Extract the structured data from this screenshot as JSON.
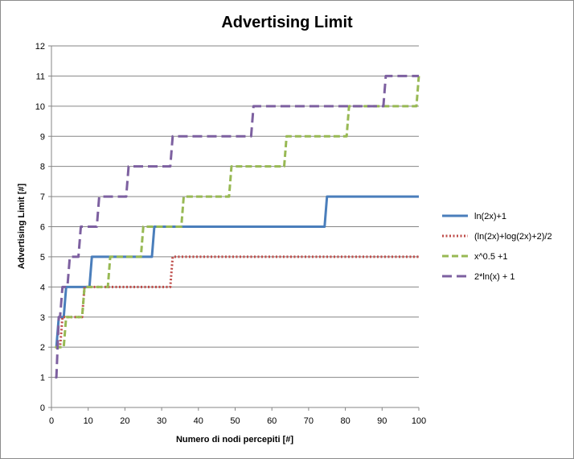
{
  "chart_data": {
    "type": "line",
    "title": "Advertising Limit",
    "xlabel": "Numero di nodi percepiti [#]",
    "ylabel": "Advertising Limit [#]",
    "xlim": [
      0,
      100
    ],
    "ylim": [
      0,
      12
    ],
    "xticks": [
      "0",
      "10",
      "20",
      "30",
      "40",
      "50",
      "60",
      "70",
      "80",
      "90",
      "100"
    ],
    "yticks": [
      "0",
      "1",
      "2",
      "3",
      "4",
      "5",
      "6",
      "7",
      "8",
      "9",
      "10",
      "11",
      "12"
    ],
    "grid": "horizontal",
    "legend_position": "right",
    "series": [
      {
        "name": "ln(2x)+1",
        "color": "#4a7ebb",
        "dash": "solid",
        "x": [
          1,
          2,
          4,
          11,
          28,
          75,
          100
        ],
        "y": [
          2,
          3,
          4,
          5,
          6,
          7,
          7
        ]
      },
      {
        "name": "(ln(2x)+log(2x)+2)/2",
        "color": "#be4b48",
        "dash": "dotted",
        "x": [
          1,
          3,
          9,
          33,
          100
        ],
        "y": [
          2,
          3,
          4,
          5,
          5
        ]
      },
      {
        "name": "x^0.5 +1",
        "color": "#98b954",
        "dash": "dashed",
        "x": [
          1,
          4,
          9,
          16,
          25,
          36,
          49,
          64,
          81,
          100
        ],
        "y": [
          2,
          3,
          4,
          5,
          6,
          7,
          8,
          9,
          10,
          11
        ]
      },
      {
        "name": "2*ln(x) + 1",
        "color": "#7d60a0",
        "dash": "longdash",
        "x": [
          1,
          2,
          3,
          5,
          8,
          13,
          21,
          33,
          55,
          91,
          100
        ],
        "y": [
          1,
          3,
          4,
          5,
          6,
          7,
          8,
          9,
          10,
          11,
          11
        ]
      }
    ]
  }
}
